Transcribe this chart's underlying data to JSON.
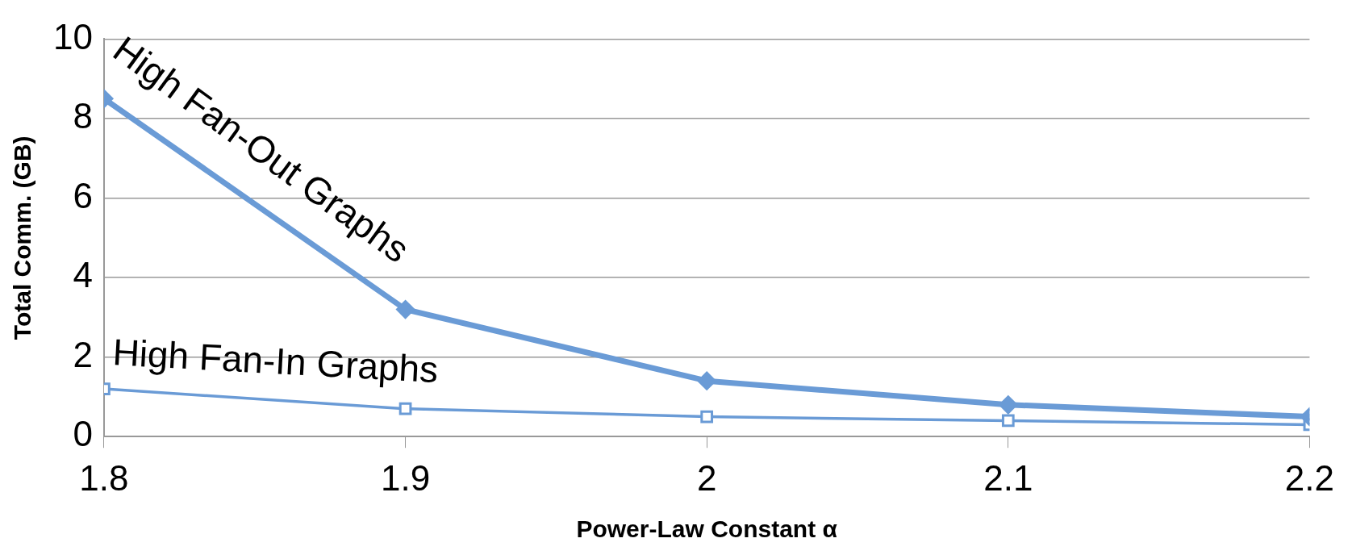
{
  "chart_data": {
    "type": "line",
    "xlabel": "Power-Law Constant α",
    "ylabel": "Total Comm. (GB)",
    "x": [
      1.8,
      1.9,
      2,
      2.1,
      2.2
    ],
    "series": [
      {
        "name": "High Fan-Out Graphs",
        "color": "#6a9bd6",
        "marker": "diamond",
        "values": [
          8.5,
          3.2,
          1.4,
          0.8,
          0.5
        ]
      },
      {
        "name": "High Fan-In Graphs",
        "color": "#6a9bd6",
        "marker": "square",
        "values": [
          1.2,
          0.7,
          0.5,
          0.4,
          0.3
        ]
      }
    ],
    "xlim": [
      1.8,
      2.2
    ],
    "xticks": [
      1.8,
      1.9,
      2,
      2.1,
      2.2
    ],
    "ylim": [
      0,
      10
    ],
    "yticks": [
      0,
      2,
      4,
      6,
      8,
      10
    ],
    "grid": "y",
    "legend": false,
    "line_style": "solid"
  }
}
